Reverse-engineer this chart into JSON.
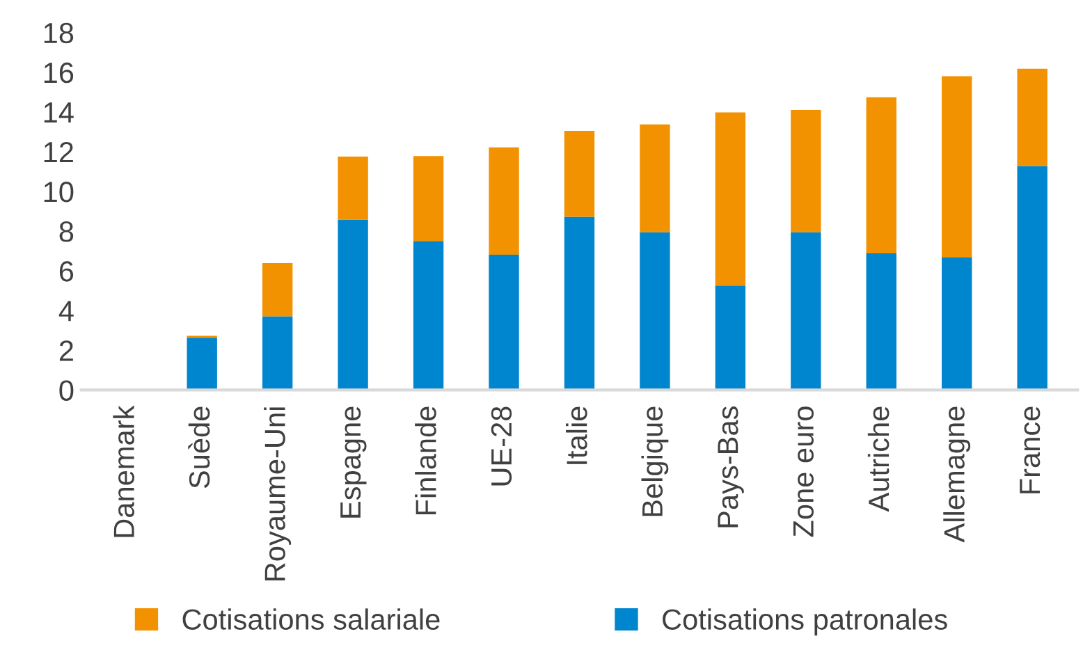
{
  "chart_data": {
    "type": "bar",
    "stacked": true,
    "categories": [
      "Danemark",
      "Suède",
      "Royaume-Uni",
      "Espagne",
      "Finlande",
      "UE-28",
      "Italie",
      "Belgique",
      "Pays-Bas",
      "Zone euro",
      "Autriche",
      "Allemagne",
      "France"
    ],
    "series": [
      {
        "name": "Cotisations patronales",
        "color": "#0086cf",
        "values": [
          0,
          2.63,
          3.71,
          8.58,
          7.5,
          6.81,
          8.72,
          7.94,
          5.26,
          7.94,
          6.88,
          6.67,
          11.28
        ]
      },
      {
        "name": "Cotisations salariale",
        "color": "#f39200",
        "values": [
          0,
          0.1,
          2.68,
          3.17,
          4.28,
          5.41,
          4.33,
          5.43,
          8.72,
          6.16,
          7.86,
          9.13,
          4.9
        ]
      }
    ],
    "ylim": [
      0,
      18
    ],
    "yticks": [
      0,
      2,
      4,
      6,
      8,
      10,
      12,
      14,
      16,
      18
    ],
    "grid": false,
    "legend": "bottom"
  }
}
